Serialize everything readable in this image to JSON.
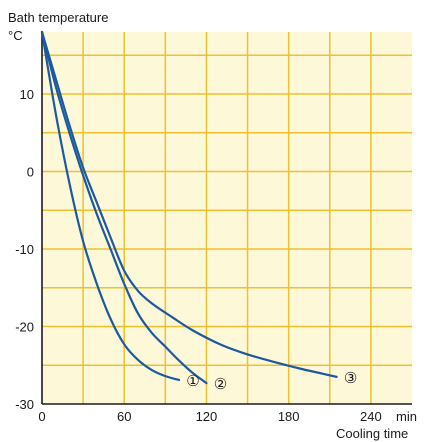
{
  "chart_data": {
    "type": "line",
    "title": "",
    "ylabel": "Bath temperature",
    "yunit": "°C",
    "xlabel": "Cooling time",
    "xunit": "min",
    "xlim": [
      0,
      270
    ],
    "ylim": [
      -30,
      18
    ],
    "x_ticks": [
      0,
      60,
      120,
      180,
      240
    ],
    "x_tick_labels": [
      "0",
      "60",
      "120",
      "180",
      "240"
    ],
    "y_ticks": [
      10,
      0,
      -10,
      -20,
      -30
    ],
    "y_tick_labels": [
      "10",
      "0",
      "-10",
      "-20",
      "-30"
    ],
    "grid": true,
    "colors": {
      "background": "#fdf8d8",
      "grid": "#f0c030",
      "line": "#1c5aa0",
      "axis": "#1a1a1a"
    },
    "series": [
      {
        "name": "①",
        "x": [
          0,
          10,
          20,
          30,
          40,
          50,
          60,
          70,
          80,
          90,
          100
        ],
        "y": [
          18,
          7.5,
          -1.5,
          -9,
          -14.5,
          -19,
          -22.3,
          -24.3,
          -25.6,
          -26.4,
          -26.9
        ]
      },
      {
        "name": "②",
        "x": [
          0,
          10,
          20,
          30,
          40,
          50,
          60,
          70,
          80,
          90,
          100,
          110,
          120
        ],
        "y": [
          18,
          11,
          5,
          -0.5,
          -5.5,
          -10,
          -14.5,
          -18.3,
          -20.8,
          -22.6,
          -24.4,
          -26,
          -27.3
        ]
      },
      {
        "name": "③",
        "x": [
          0,
          10,
          20,
          30,
          40,
          50,
          60,
          70,
          80,
          95,
          110,
          130,
          150,
          170,
          190,
          205,
          215
        ],
        "y": [
          18,
          12,
          6,
          0.5,
          -4,
          -8.5,
          -12.8,
          -15.4,
          -17,
          -18.8,
          -20.5,
          -22.3,
          -23.6,
          -24.6,
          -25.5,
          -26.1,
          -26.5
        ]
      }
    ]
  }
}
